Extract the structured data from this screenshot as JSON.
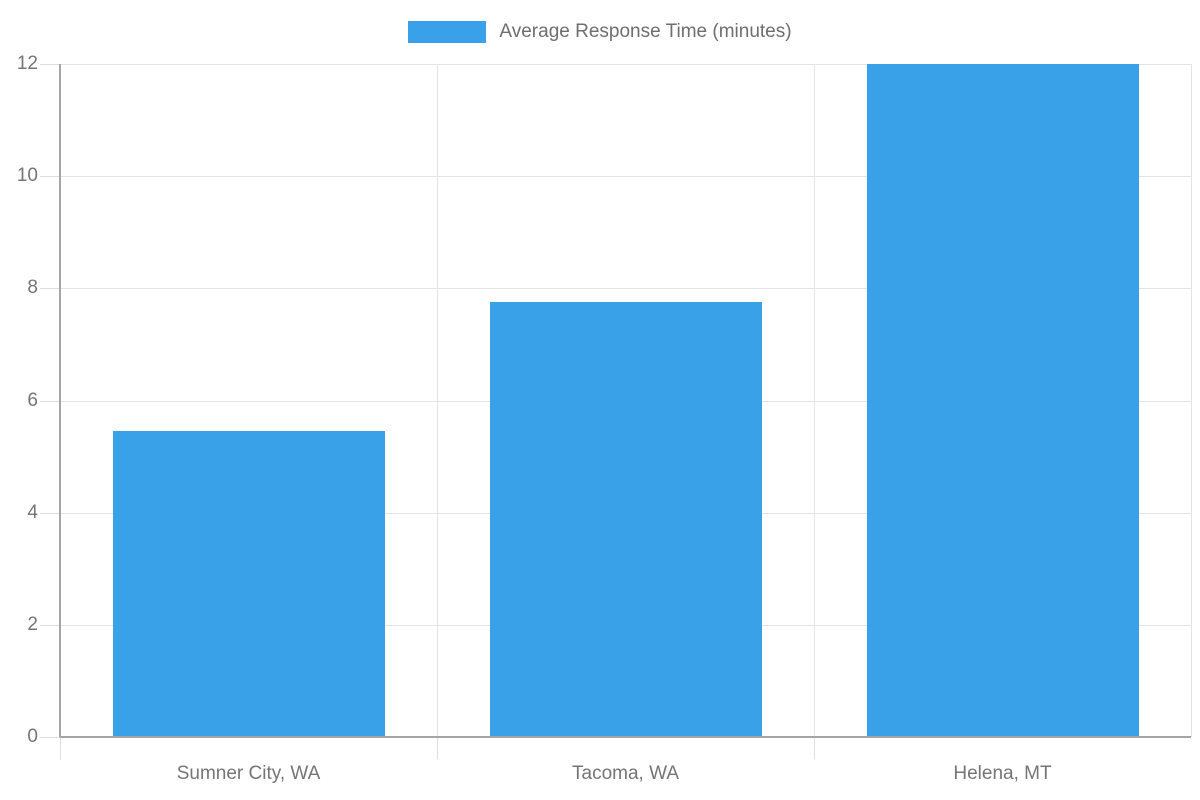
{
  "legend": {
    "label": "Average Response Time (minutes)"
  },
  "chart_data": {
    "type": "bar",
    "title": "",
    "categories": [
      "Sumner City, WA",
      "Tacoma, WA",
      "Helena, MT"
    ],
    "series": [
      {
        "name": "Average Response Time (minutes)",
        "values": [
          5.45,
          7.75,
          12
        ]
      }
    ],
    "xlabel": "",
    "ylabel": "",
    "ylim": [
      0,
      12
    ],
    "yticks": [
      0,
      2,
      4,
      6,
      8,
      10,
      12
    ],
    "grid": true,
    "legend_position": "top-center",
    "bar_color": "#38a1e8"
  },
  "colors": {
    "bar": "#38a1e8",
    "gridline": "#e3e3e3",
    "axis": "#a5a5a5",
    "tick_stub": "#dedede",
    "tick_text": "#757575",
    "legend_text": "#6e6e6e",
    "background": "#ffffff"
  }
}
